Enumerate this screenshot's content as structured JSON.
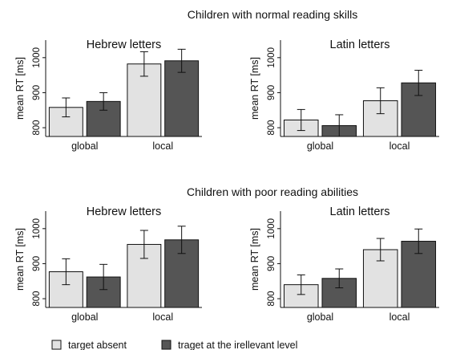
{
  "legend": [
    {
      "label": "target absent",
      "color": "#e2e2e2"
    },
    {
      "label": "traget at the irellevant level",
      "color": "#555555"
    }
  ],
  "chart_data": [
    {
      "type": "bar",
      "row_title": "Children with normal reading skills",
      "title": "Hebrew letters",
      "ylabel": "mean RT [ms]",
      "ylim": [
        775,
        1050
      ],
      "yticks": [
        800,
        900,
        1000
      ],
      "categories": [
        "global",
        "local"
      ],
      "series": [
        {
          "name": "target absent",
          "values": [
            858,
            982
          ],
          "errors": [
            27,
            35
          ]
        },
        {
          "name": "traget at the irellevant level",
          "values": [
            875,
            991
          ],
          "errors": [
            25,
            33
          ]
        }
      ]
    },
    {
      "type": "bar",
      "row_title": "Children with normal reading skills",
      "title": "Latin letters",
      "ylabel": "mean RT [ms]",
      "ylim": [
        775,
        1050
      ],
      "yticks": [
        800,
        900,
        1000
      ],
      "categories": [
        "global",
        "local"
      ],
      "series": [
        {
          "name": "target absent",
          "values": [
            822,
            877
          ],
          "errors": [
            30,
            37
          ]
        },
        {
          "name": "traget at the irellevant level",
          "values": [
            806,
            928
          ],
          "errors": [
            31,
            36
          ]
        }
      ]
    },
    {
      "type": "bar",
      "row_title": "Children with poor reading abilities",
      "title": "Hebrew letters",
      "ylabel": "mean RT [ms]",
      "ylim": [
        775,
        1050
      ],
      "yticks": [
        800,
        900,
        1000
      ],
      "categories": [
        "global",
        "local"
      ],
      "series": [
        {
          "name": "target absent",
          "values": [
            877,
            955
          ],
          "errors": [
            37,
            40
          ]
        },
        {
          "name": "traget at the irellevant level",
          "values": [
            862,
            968
          ],
          "errors": [
            36,
            39
          ]
        }
      ]
    },
    {
      "type": "bar",
      "row_title": "Children with poor reading abilities",
      "title": "Latin letters",
      "ylabel": "mean RT [ms]",
      "ylim": [
        775,
        1050
      ],
      "yticks": [
        800,
        900,
        1000
      ],
      "categories": [
        "global",
        "local"
      ],
      "series": [
        {
          "name": "target absent",
          "values": [
            840,
            940
          ],
          "errors": [
            28,
            32
          ]
        },
        {
          "name": "traget at the irellevant level",
          "values": [
            858,
            964
          ],
          "errors": [
            27,
            35
          ]
        }
      ]
    }
  ]
}
